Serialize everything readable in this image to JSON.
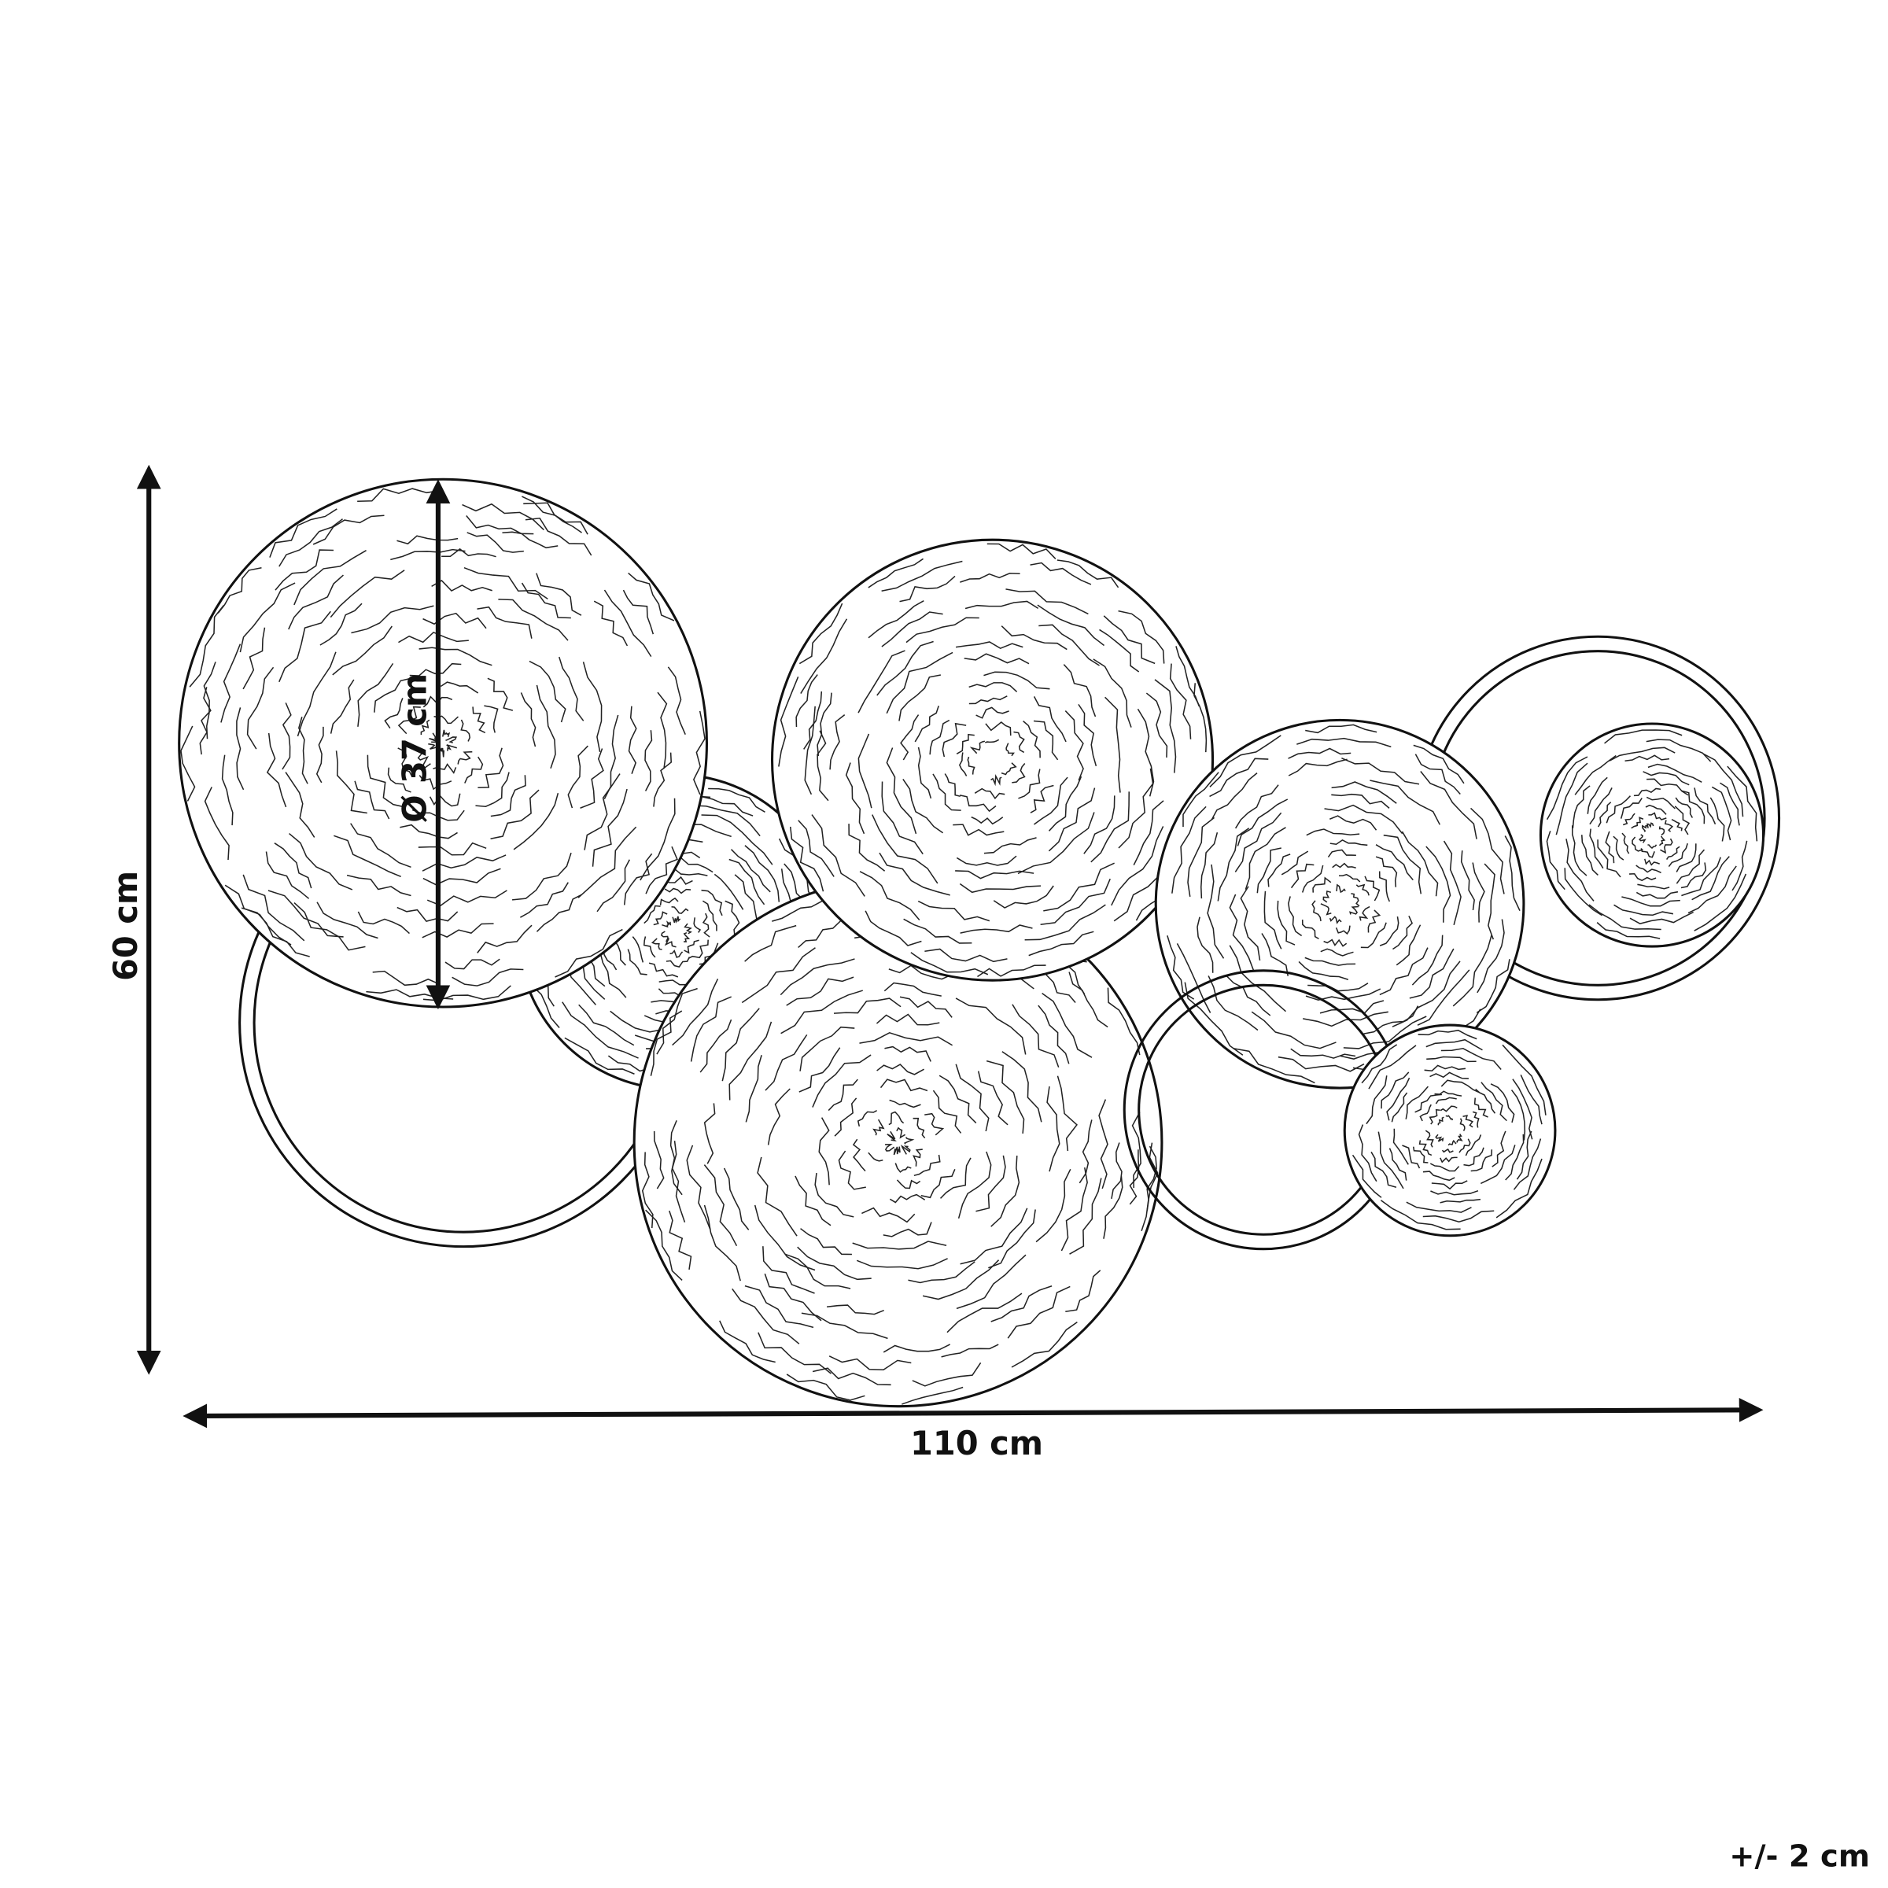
{
  "dimensions": {
    "height_label": "60 cm",
    "width_label": "110 cm",
    "diameter_label": "Ø 37 cm",
    "tolerance_label": "+/- 2 cm"
  },
  "colors": {
    "line": "#111111",
    "background": "#ffffff"
  }
}
